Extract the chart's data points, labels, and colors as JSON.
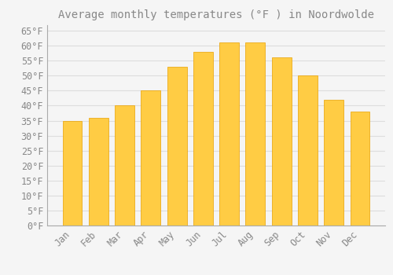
{
  "title": "Average monthly temperatures (°F ) in Noordwolde",
  "months": [
    "Jan",
    "Feb",
    "Mar",
    "Apr",
    "May",
    "Jun",
    "Jul",
    "Aug",
    "Sep",
    "Oct",
    "Nov",
    "Dec"
  ],
  "values": [
    35,
    36,
    40,
    45,
    53,
    58,
    61,
    61,
    56,
    50,
    42,
    38
  ],
  "bar_color_top": "#FFB800",
  "bar_color_bot": "#FFCC44",
  "bar_edge_color": "#E8A000",
  "background_color": "#F5F5F5",
  "grid_color": "#DDDDDD",
  "text_color": "#888888",
  "ylim": [
    0,
    67
  ],
  "yticks": [
    0,
    5,
    10,
    15,
    20,
    25,
    30,
    35,
    40,
    45,
    50,
    55,
    60,
    65
  ],
  "title_fontsize": 10,
  "tick_fontsize": 8.5,
  "bar_width": 0.75
}
